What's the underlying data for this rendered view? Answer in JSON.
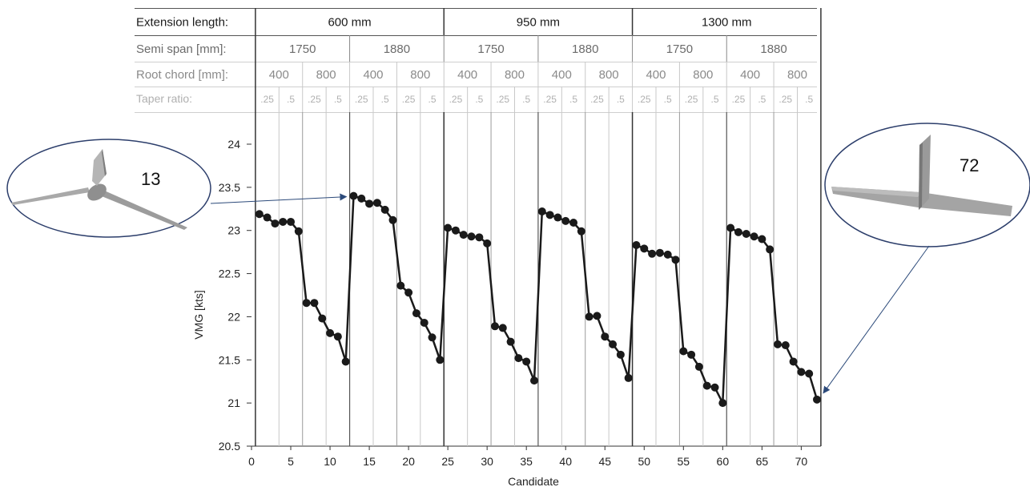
{
  "chart_data": {
    "type": "line",
    "xlabel": "Candidate",
    "ylabel": "VMG [kts]",
    "xlim": [
      0,
      72
    ],
    "ylim": [
      20.5,
      24
    ],
    "xticks": [
      0,
      5,
      10,
      15,
      20,
      25,
      30,
      35,
      40,
      45,
      50,
      55,
      60,
      65,
      70
    ],
    "yticks": [
      20.5,
      21,
      21.5,
      22,
      22.5,
      23,
      23.5,
      24
    ],
    "xtick_labels": [
      "0",
      "5",
      "10",
      "15",
      "20",
      "25",
      "30",
      "35",
      "40",
      "45",
      "50",
      "55",
      "60",
      "65",
      "70"
    ],
    "ytick_labels": [
      "20.5",
      "21",
      "21.5",
      "22",
      "22.5",
      "23",
      "23.5",
      "24"
    ],
    "x": [
      1,
      2,
      3,
      4,
      5,
      6,
      7,
      8,
      9,
      10,
      11,
      12,
      13,
      14,
      15,
      16,
      17,
      18,
      19,
      20,
      21,
      22,
      23,
      24,
      25,
      26,
      27,
      28,
      29,
      30,
      31,
      32,
      33,
      34,
      35,
      36,
      37,
      38,
      39,
      40,
      41,
      42,
      43,
      44,
      45,
      46,
      47,
      48,
      49,
      50,
      51,
      52,
      53,
      54,
      55,
      56,
      57,
      58,
      59,
      60,
      61,
      62,
      63,
      64,
      65,
      66,
      67,
      68,
      69,
      70,
      71,
      72
    ],
    "y": [
      23.19,
      23.15,
      23.08,
      23.1,
      23.1,
      22.99,
      22.16,
      22.16,
      21.98,
      21.81,
      21.77,
      21.48,
      23.4,
      23.37,
      23.31,
      23.32,
      23.24,
      23.12,
      22.36,
      22.28,
      22.04,
      21.93,
      21.76,
      21.5,
      23.03,
      23.0,
      22.95,
      22.93,
      22.92,
      22.85,
      21.89,
      21.87,
      21.71,
      21.52,
      21.48,
      21.26,
      23.22,
      23.18,
      23.15,
      23.11,
      23.09,
      22.99,
      22.0,
      22.01,
      21.77,
      21.68,
      21.56,
      21.29,
      22.83,
      22.79,
      22.73,
      22.74,
      22.72,
      22.66,
      21.6,
      21.56,
      21.42,
      21.2,
      21.18,
      21.0,
      23.03,
      22.98,
      22.96,
      22.93,
      22.9,
      22.78,
      21.68,
      21.67,
      21.48,
      21.36,
      21.34,
      21.04
    ],
    "grid": false,
    "header_table": {
      "rows": [
        {
          "label": "Extension length:",
          "cells": [
            "600 mm",
            "950 mm",
            "1300 mm"
          ]
        },
        {
          "label": "Semi span [mm]:",
          "cells": [
            "1750",
            "1880",
            "1750",
            "1880",
            "1750",
            "1880"
          ]
        },
        {
          "label": "Root chord [mm]:",
          "cells": [
            "400",
            "800",
            "400",
            "800",
            "400",
            "800",
            "400",
            "800",
            "400",
            "800",
            "400",
            "800"
          ]
        },
        {
          "label": "Taper ratio:",
          "cells": [
            ".25",
            ".5",
            ".25",
            ".5",
            ".25",
            ".5",
            ".25",
            ".5",
            ".25",
            ".5",
            ".25",
            ".5",
            ".25",
            ".5",
            ".25",
            ".5",
            ".25",
            ".5",
            ".25",
            ".5",
            ".25",
            ".5",
            ".25",
            ".5"
          ]
        }
      ]
    },
    "callouts": [
      {
        "label": "13",
        "target_candidate": 13
      },
      {
        "label": "72",
        "target_candidate": 72
      }
    ],
    "colors": {
      "line": "#1a1a1a",
      "marker": "#1a1a1a",
      "header_dark": "#1a1a1a",
      "header_mid": "#6b6b6b",
      "header_light": "#b0b0b0",
      "arrow": "#2c4a7a",
      "callout_border": "#2c3e6b"
    }
  }
}
